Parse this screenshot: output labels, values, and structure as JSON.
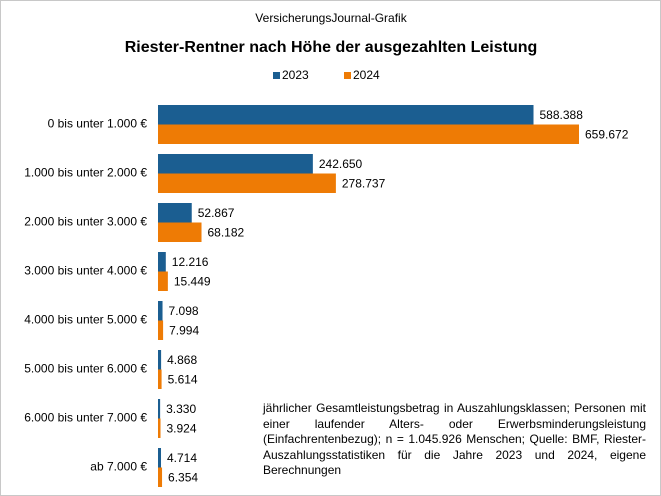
{
  "chart_data": {
    "type": "hbar",
    "subtitle": "VersicherungsJournal-Grafik",
    "title": "Riester-Rentner nach Höhe der ausgezahlten Leistung",
    "categories": [
      "0 bis unter 1.000 €",
      "1.000 bis unter 2.000 €",
      "2.000 bis unter 3.000 €",
      "3.000 bis unter 4.000 €",
      "4.000 bis unter 5.000 €",
      "5.000 bis unter 6.000 €",
      "6.000 bis unter 7.000 €",
      "ab 7.000 €"
    ],
    "series": [
      {
        "name": "2023",
        "color": "#1b5e91",
        "values": [
          588388,
          242650,
          52867,
          12216,
          7098,
          4868,
          3330,
          4714
        ],
        "value_labels": [
          "588.388",
          "242.650",
          "52.867",
          "12.216",
          "7.098",
          "4.868",
          "3.330",
          "4.714"
        ]
      },
      {
        "name": "2024",
        "color": "#ee7b05",
        "values": [
          659672,
          278737,
          68182,
          15449,
          7994,
          5614,
          3924,
          6354
        ],
        "value_labels": [
          "659.672",
          "278.737",
          "68.182",
          "15.449",
          "7.994",
          "5.614",
          "3.924",
          "6.354"
        ]
      }
    ],
    "legend": "top",
    "note": "jährlicher Gesamtleistungsbetrag in Auszahlungsklassen; Personen mit einer laufender Alters- oder Erwerbsminderungsleistung (Einfachrentenbezug);   n = 1.045.926  Menschen; Quelle: BMF, Riester-Auszahlungsstatistiken für die Jahre 2023 und 2024, eigene Berechnungen"
  }
}
